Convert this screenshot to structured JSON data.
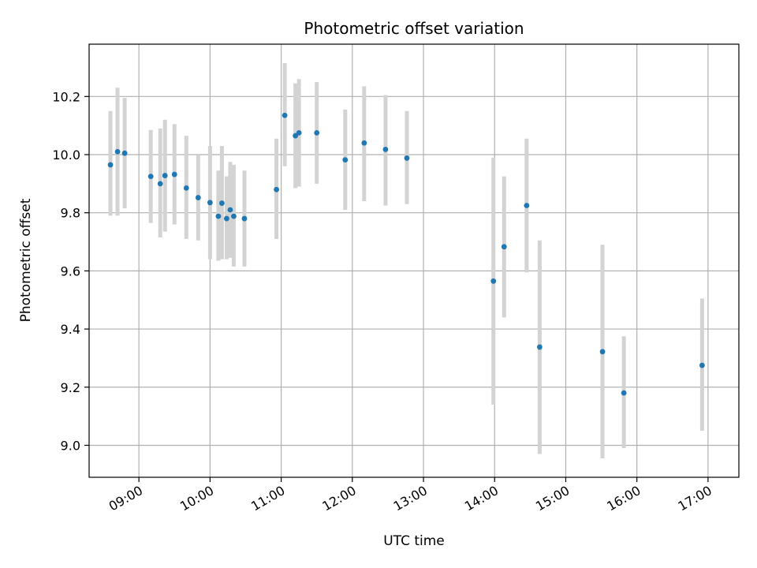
{
  "chart_data": {
    "type": "scatter",
    "title": "Photometric offset variation",
    "xlabel": "UTC time",
    "ylabel": "Photometric offset",
    "x_ticks": [
      "09:00",
      "10:00",
      "11:00",
      "12:00",
      "13:00",
      "14:00",
      "15:00",
      "16:00",
      "17:00"
    ],
    "xlim": [
      "08:18",
      "17:26"
    ],
    "ylim": [
      8.89,
      10.38
    ],
    "y_ticks": [
      9.0,
      9.2,
      9.4,
      9.6,
      9.8,
      10.0,
      10.2
    ],
    "grid": true,
    "marker_color": "#1f77b4",
    "errorbar_color": "#d3d3d3",
    "points": [
      {
        "x": "08:36",
        "y": 9.965,
        "lo": 9.79,
        "hi": 10.15
      },
      {
        "x": "08:42",
        "y": 10.01,
        "lo": 9.79,
        "hi": 10.23
      },
      {
        "x": "08:48",
        "y": 10.005,
        "lo": 9.815,
        "hi": 10.195
      },
      {
        "x": "09:10",
        "y": 9.925,
        "lo": 9.765,
        "hi": 10.085
      },
      {
        "x": "09:18",
        "y": 9.9,
        "lo": 9.715,
        "hi": 10.09
      },
      {
        "x": "09:22",
        "y": 9.928,
        "lo": 9.735,
        "hi": 10.12
      },
      {
        "x": "09:30",
        "y": 9.932,
        "lo": 9.76,
        "hi": 10.105
      },
      {
        "x": "09:40",
        "y": 9.885,
        "lo": 9.71,
        "hi": 10.065
      },
      {
        "x": "09:50",
        "y": 9.852,
        "lo": 9.705,
        "hi": 10.0
      },
      {
        "x": "10:00",
        "y": 9.835,
        "lo": 9.64,
        "hi": 10.03
      },
      {
        "x": "10:07",
        "y": 9.788,
        "lo": 9.635,
        "hi": 9.945
      },
      {
        "x": "10:10",
        "y": 9.833,
        "lo": 9.64,
        "hi": 10.03
      },
      {
        "x": "10:14",
        "y": 9.78,
        "lo": 9.64,
        "hi": 9.925
      },
      {
        "x": "10:17",
        "y": 9.81,
        "lo": 9.645,
        "hi": 9.975
      },
      {
        "x": "10:20",
        "y": 9.788,
        "lo": 9.615,
        "hi": 9.965
      },
      {
        "x": "10:29",
        "y": 9.78,
        "lo": 9.615,
        "hi": 9.945
      },
      {
        "x": "10:56",
        "y": 9.88,
        "lo": 9.71,
        "hi": 10.055
      },
      {
        "x": "11:03",
        "y": 10.135,
        "lo": 9.96,
        "hi": 10.315
      },
      {
        "x": "11:12",
        "y": 10.065,
        "lo": 9.885,
        "hi": 10.245
      },
      {
        "x": "11:15",
        "y": 10.075,
        "lo": 9.89,
        "hi": 10.26
      },
      {
        "x": "11:30",
        "y": 10.075,
        "lo": 9.9,
        "hi": 10.25
      },
      {
        "x": "11:54",
        "y": 9.982,
        "lo": 9.81,
        "hi": 10.155
      },
      {
        "x": "12:10",
        "y": 10.04,
        "lo": 9.84,
        "hi": 10.235
      },
      {
        "x": "12:28",
        "y": 10.018,
        "lo": 9.825,
        "hi": 10.205
      },
      {
        "x": "12:46",
        "y": 9.988,
        "lo": 9.83,
        "hi": 10.15
      },
      {
        "x": "13:59",
        "y": 9.565,
        "lo": 9.14,
        "hi": 9.99
      },
      {
        "x": "14:08",
        "y": 9.683,
        "lo": 9.44,
        "hi": 9.925
      },
      {
        "x": "14:27",
        "y": 9.825,
        "lo": 9.595,
        "hi": 10.055
      },
      {
        "x": "14:38",
        "y": 9.338,
        "lo": 8.97,
        "hi": 9.705
      },
      {
        "x": "15:31",
        "y": 9.322,
        "lo": 8.955,
        "hi": 9.69
      },
      {
        "x": "15:49",
        "y": 9.18,
        "lo": 8.99,
        "hi": 9.375
      },
      {
        "x": "16:55",
        "y": 9.275,
        "lo": 9.05,
        "hi": 9.505
      }
    ]
  }
}
